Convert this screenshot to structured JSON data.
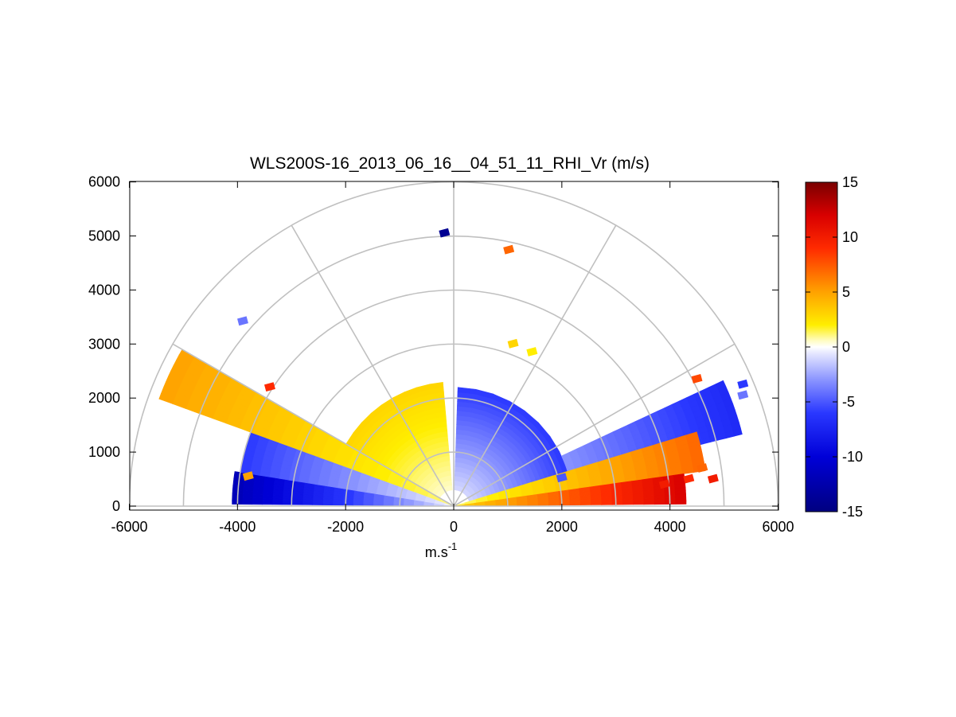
{
  "chart_data": {
    "type": "heatmap",
    "projection": "polar-half (RHI scan)",
    "title": "WLS200S-16_2013_06_16__04_51_11_RHI_Vr (m/s)",
    "xlabel": "m.s",
    "xlabel_superscript": "-1",
    "ylabel": "",
    "xlim": [
      -6000,
      6000
    ],
    "ylim": [
      0,
      6000
    ],
    "x_ticks": [
      "-6000",
      "-4000",
      "-2000",
      "0",
      "2000",
      "4000",
      "6000"
    ],
    "y_ticks": [
      "0",
      "1000",
      "2000",
      "3000",
      "4000",
      "5000",
      "6000"
    ],
    "grid": true,
    "polar_grid": {
      "range_rings": [
        1000,
        2000,
        3000,
        4000,
        5000,
        6000
      ],
      "spokes_deg": [
        0,
        30,
        60,
        90,
        120,
        150,
        180
      ]
    },
    "colorbar": {
      "min": -15,
      "max": 15,
      "ticks": [
        "15",
        "10",
        "5",
        "0",
        "-5",
        "-10",
        "-15"
      ],
      "colormap": [
        {
          "v": -15,
          "color": "#000080"
        },
        {
          "v": -10,
          "color": "#0000d8"
        },
        {
          "v": -6,
          "color": "#2a38ff"
        },
        {
          "v": -3,
          "color": "#8a94ff"
        },
        {
          "v": -0.6,
          "color": "#e4e6ff"
        },
        {
          "v": 0,
          "color": "#ffffff"
        },
        {
          "v": 0.6,
          "color": "#fffcc0"
        },
        {
          "v": 2,
          "color": "#ffee00"
        },
        {
          "v": 5,
          "color": "#ffa200"
        },
        {
          "v": 9,
          "color": "#ff2a00"
        },
        {
          "v": 12,
          "color": "#d80000"
        },
        {
          "v": 15,
          "color": "#7a0000"
        }
      ]
    },
    "sectors": [
      {
        "name": "left-low-approaching",
        "theta_deg": [
          171,
          179.5
        ],
        "r_m": [
          0,
          4100
        ],
        "vr_ms": [
          -0.5,
          -12
        ]
      },
      {
        "name": "left-mid-approaching",
        "theta_deg": [
          160,
          171
        ],
        "r_m": [
          0,
          4000
        ],
        "vr_ms": [
          -0.3,
          -6
        ]
      },
      {
        "name": "left-upper-receding",
        "theta_deg": [
          150,
          160
        ],
        "r_m": [
          0,
          5800
        ],
        "vr_ms": [
          1,
          5
        ]
      },
      {
        "name": "left-upper-near",
        "theta_deg": [
          95,
          150
        ],
        "r_m": [
          300,
          2300
        ],
        "vr_ms": [
          0.5,
          3
        ]
      },
      {
        "name": "right-upper-approaching",
        "theta_deg": [
          10,
          88
        ],
        "r_m": [
          300,
          2200
        ],
        "vr_ms": [
          -1,
          -6
        ]
      },
      {
        "name": "right-upper-far",
        "theta_deg": [
          14,
          25
        ],
        "r_m": [
          2200,
          5500
        ],
        "vr_ms": [
          -3,
          -7
        ]
      },
      {
        "name": "right-mid-receding",
        "theta_deg": [
          8,
          17
        ],
        "r_m": [
          0,
          4700
        ],
        "vr_ms": [
          1,
          7
        ]
      },
      {
        "name": "right-low-receding",
        "theta_deg": [
          0.5,
          8
        ],
        "r_m": [
          0,
          4300
        ],
        "vr_ms": [
          3,
          12
        ]
      }
    ],
    "scatter_points": [
      {
        "x": -170,
        "y": 5050,
        "vr": -14
      },
      {
        "x": 1020,
        "y": 4740,
        "vr": 7
      },
      {
        "x": -3900,
        "y": 3420,
        "vr": -4
      },
      {
        "x": 2000,
        "y": 520,
        "vr": -5
      },
      {
        "x": 5350,
        "y": 2250,
        "vr": -6
      },
      {
        "x": 4500,
        "y": 2350,
        "vr": 8
      },
      {
        "x": 5350,
        "y": 2050,
        "vr": -4
      },
      {
        "x": -3400,
        "y": 2200,
        "vr": 9
      },
      {
        "x": 1100,
        "y": 3000,
        "vr": 3
      },
      {
        "x": 1450,
        "y": 2850,
        "vr": 2
      },
      {
        "x": 4600,
        "y": 700,
        "vr": 7
      },
      {
        "x": 4350,
        "y": 500,
        "vr": 9
      },
      {
        "x": 4800,
        "y": 500,
        "vr": 10
      },
      {
        "x": 3900,
        "y": 400,
        "vr": 10
      },
      {
        "x": -3800,
        "y": 550,
        "vr": 5
      }
    ]
  }
}
